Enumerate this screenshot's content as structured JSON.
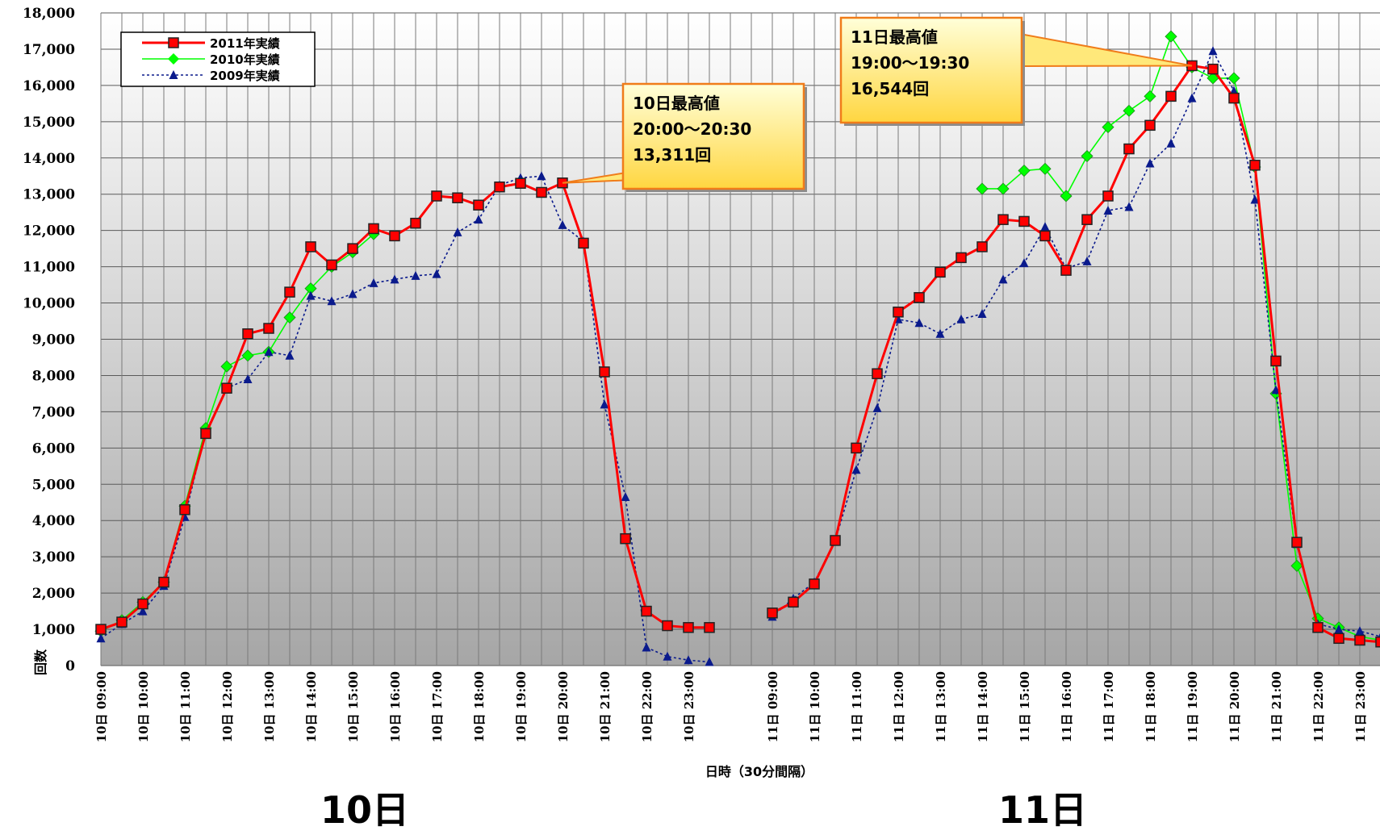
{
  "chart_data": {
    "type": "line",
    "xlabel": "日時（30分間隔）",
    "ylabel": "回数",
    "ylim": [
      0,
      18000
    ],
    "yticks": [
      0,
      1000,
      2000,
      3000,
      4000,
      5000,
      6000,
      7000,
      8000,
      9000,
      10000,
      11000,
      12000,
      13000,
      14000,
      15000,
      16000,
      17000,
      18000
    ],
    "ytick_labels": [
      "0",
      "1,000",
      "2,000",
      "3,000",
      "4,000",
      "5,000",
      "6,000",
      "7,000",
      "8,000",
      "9,000",
      "10,000",
      "11,000",
      "12,000",
      "13,000",
      "14,000",
      "15,000",
      "16,000",
      "17,000",
      "18,000"
    ],
    "grid": true,
    "legend_position": "top-left",
    "x": [
      "10日 09:00",
      "10日 09:30",
      "10日 10:00",
      "10日 10:30",
      "10日 11:00",
      "10日 11:30",
      "10日 12:00",
      "10日 12:30",
      "10日 13:00",
      "10日 13:30",
      "10日 14:00",
      "10日 14:30",
      "10日 15:00",
      "10日 15:30",
      "10日 16:00",
      "10日 16:30",
      "10日 17:00",
      "10日 17:30",
      "10日 18:00",
      "10日 18:30",
      "10日 19:00",
      "10日 19:30",
      "10日 20:00",
      "10日 20:30",
      "10日 21:00",
      "10日 21:30",
      "10日 22:00",
      "10日 22:30",
      "10日 23:00",
      "10日 23:30",
      "",
      "",
      "11日 09:00",
      "11日 09:30",
      "11日 10:00",
      "11日 10:30",
      "11日 11:00",
      "11日 11:30",
      "11日 12:00",
      "11日 12:30",
      "11日 13:00",
      "11日 13:30",
      "11日 14:00",
      "11日 14:30",
      "11日 15:00",
      "11日 15:30",
      "11日 16:00",
      "11日 16:30",
      "11日 17:00",
      "11日 17:30",
      "11日 18:00",
      "11日 18:30",
      "11日 19:00",
      "11日 19:30",
      "11日 20:00",
      "11日 20:30",
      "11日 21:00",
      "11日 21:30",
      "11日 22:00",
      "11日 22:30",
      "11日 23:00",
      "11日 23:30"
    ],
    "xtick_labels": [
      "10日 09:00",
      "10日 10:00",
      "10日 11:00",
      "10日 12:00",
      "10日 13:00",
      "10日 14:00",
      "10日 15:00",
      "10日 16:00",
      "10日 17:00",
      "10日 18:00",
      "10日 19:00",
      "10日 20:00",
      "10日 21:00",
      "10日 22:00",
      "10日 23:00",
      "11日 09:00",
      "11日 10:00",
      "11日 11:00",
      "11日 12:00",
      "11日 13:00",
      "11日 14:00",
      "11日 15:00",
      "11日 16:00",
      "11日 17:00",
      "11日 18:00",
      "11日 19:00",
      "11日 20:00",
      "11日 21:00",
      "11日 22:00",
      "11日 23:00"
    ],
    "series": [
      {
        "name": "2011年実績",
        "color": "#ff0000",
        "marker": "square",
        "style": "solid",
        "values": [
          1000,
          1200,
          1700,
          2300,
          4300,
          6400,
          7650,
          9150,
          9300,
          10300,
          11550,
          11050,
          11500,
          12050,
          11850,
          12200,
          12950,
          12900,
          12700,
          13200,
          13300,
          13050,
          13311,
          11650,
          8100,
          3500,
          1500,
          1100,
          1050,
          1050,
          null,
          null,
          1450,
          1750,
          2250,
          3450,
          6000,
          8050,
          9750,
          10150,
          10850,
          11250,
          11550,
          12300,
          12250,
          11850,
          10900,
          12300,
          12950,
          14250,
          14900,
          15700,
          16544,
          16450,
          15650,
          13800,
          8400,
          3400,
          1050,
          750,
          700,
          650
        ]
      },
      {
        "name": "2010年実績",
        "color": "#00ff00",
        "marker": "diamond",
        "style": "solid",
        "values": [
          950,
          1250,
          1750,
          2300,
          4400,
          6550,
          8250,
          8550,
          8650,
          9600,
          10400,
          11000,
          11400,
          11900,
          null,
          null,
          null,
          null,
          null,
          null,
          null,
          null,
          null,
          null,
          null,
          null,
          null,
          null,
          null,
          null,
          null,
          null,
          null,
          null,
          null,
          null,
          null,
          null,
          null,
          null,
          null,
          null,
          13150,
          13150,
          13650,
          13700,
          12950,
          14050,
          14850,
          15300,
          15700,
          17350,
          16500,
          16200,
          16200,
          13750,
          7500,
          2750,
          1300,
          1050,
          800,
          700
        ]
      },
      {
        "name": "2009年実績",
        "color": "#0a1a8c",
        "marker": "triangle",
        "style": "dotted",
        "values": [
          750,
          1150,
          1500,
          2200,
          4100,
          6450,
          7650,
          7900,
          8650,
          8550,
          10200,
          10050,
          10250,
          10550,
          10650,
          10750,
          10800,
          11950,
          12300,
          13250,
          13450,
          13500,
          12150,
          11700,
          7200,
          4650,
          500,
          250,
          150,
          100,
          null,
          null,
          1350,
          1850,
          2300,
          3450,
          5400,
          7100,
          9550,
          9450,
          9150,
          9550,
          9700,
          10650,
          11100,
          12100,
          10950,
          11150,
          12550,
          12650,
          13850,
          14400,
          15650,
          16950,
          15850,
          12850,
          7600,
          3350,
          1150,
          1000,
          950,
          800
        ]
      }
    ],
    "annotations": [
      {
        "lines": [
          "10日最高値",
          "20:00～20:30",
          "13,311回"
        ],
        "target_series": "2011年実績",
        "target_index": 22
      },
      {
        "lines": [
          "11日最高値",
          "19:00～19:30",
          "16,544回"
        ],
        "target_series": "2011年実績",
        "target_index": 52
      }
    ],
    "day_labels": [
      "10日",
      "11日"
    ]
  }
}
